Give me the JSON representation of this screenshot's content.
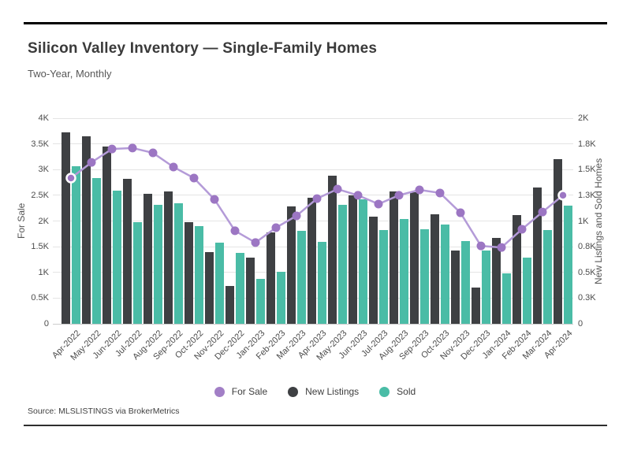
{
  "header": {
    "title": "Silicon Valley Inventory — Single-Family Homes",
    "subtitle": "Two-Year, Monthly"
  },
  "source_note": "Source: MLSLISTINGS via BrokerMetrics",
  "legend": {
    "items": [
      {
        "label": "For Sale",
        "color": "#a27fc6"
      },
      {
        "label": "New Listings",
        "color": "#3e4043"
      },
      {
        "label": "Sold",
        "color": "#4abca6"
      }
    ]
  },
  "chart_data": {
    "type": "combo: grouped bars + line",
    "title": "Silicon Valley Inventory — Single-Family Homes",
    "subtitle": "Two-Year, Monthly",
    "grid": true,
    "legend_position": "bottom",
    "endpoint_markers": "first and last For Sale points drawn with white ring",
    "categories": [
      "Apr-2022",
      "May-2022",
      "Jun-2022",
      "Jul-2022",
      "Aug-2022",
      "Sep-2022",
      "Oct-2022",
      "Nov-2022",
      "Dec-2022",
      "Jan-2023",
      "Feb-2023",
      "Mar-2023",
      "Apr-2023",
      "May-2023",
      "Jun-2023",
      "Jul-2023",
      "Aug-2023",
      "Sep-2023",
      "Oct-2023",
      "Nov-2023",
      "Dec-2023",
      "Jan-2024",
      "Feb-2024",
      "Mar-2024",
      "Apr-2024"
    ],
    "series": [
      {
        "name": "For Sale",
        "type": "line",
        "axis": "left",
        "color": "#9c76c3",
        "line_color": "#b49bd8",
        "values": [
          2835,
          3140,
          3400,
          3420,
          3325,
          3050,
          2835,
          2420,
          1810,
          1580,
          1870,
          2100,
          2435,
          2620,
          2500,
          2330,
          2500,
          2605,
          2545,
          2160,
          1515,
          1485,
          1840,
          2175,
          2500
        ]
      },
      {
        "name": "New Listings",
        "type": "bar",
        "axis": "right",
        "color": "#3e4043",
        "values": [
          1860,
          1825,
          1725,
          1410,
          1265,
          1290,
          990,
          695,
          370,
          645,
          890,
          1140,
          1225,
          1440,
          1250,
          1040,
          1290,
          1280,
          1065,
          715,
          350,
          835,
          1060,
          1325,
          1600
        ]
      },
      {
        "name": "Sold",
        "type": "bar",
        "axis": "right",
        "color": "#4abca6",
        "values": [
          1530,
          1420,
          1295,
          990,
          1155,
          1170,
          950,
          790,
          690,
          435,
          505,
          905,
          795,
          1155,
          1210,
          910,
          1020,
          920,
          965,
          805,
          715,
          490,
          645,
          910,
          1150
        ]
      }
    ],
    "left_axis": {
      "label": "For Sale",
      "min": 0,
      "max": 4000,
      "ticks": [
        "0",
        "0.5K",
        "1K",
        "1.5K",
        "2K",
        "2.5K",
        "3K",
        "3.5K",
        "4K"
      ]
    },
    "right_axis": {
      "label": "New Listings and Sold Homes",
      "min": 0,
      "max": 2000,
      "ticks": [
        "0",
        "0.3K",
        "0.5K",
        "0.8K",
        "1K",
        "1.3K",
        "1.5K",
        "1.8K",
        "2K"
      ]
    }
  }
}
